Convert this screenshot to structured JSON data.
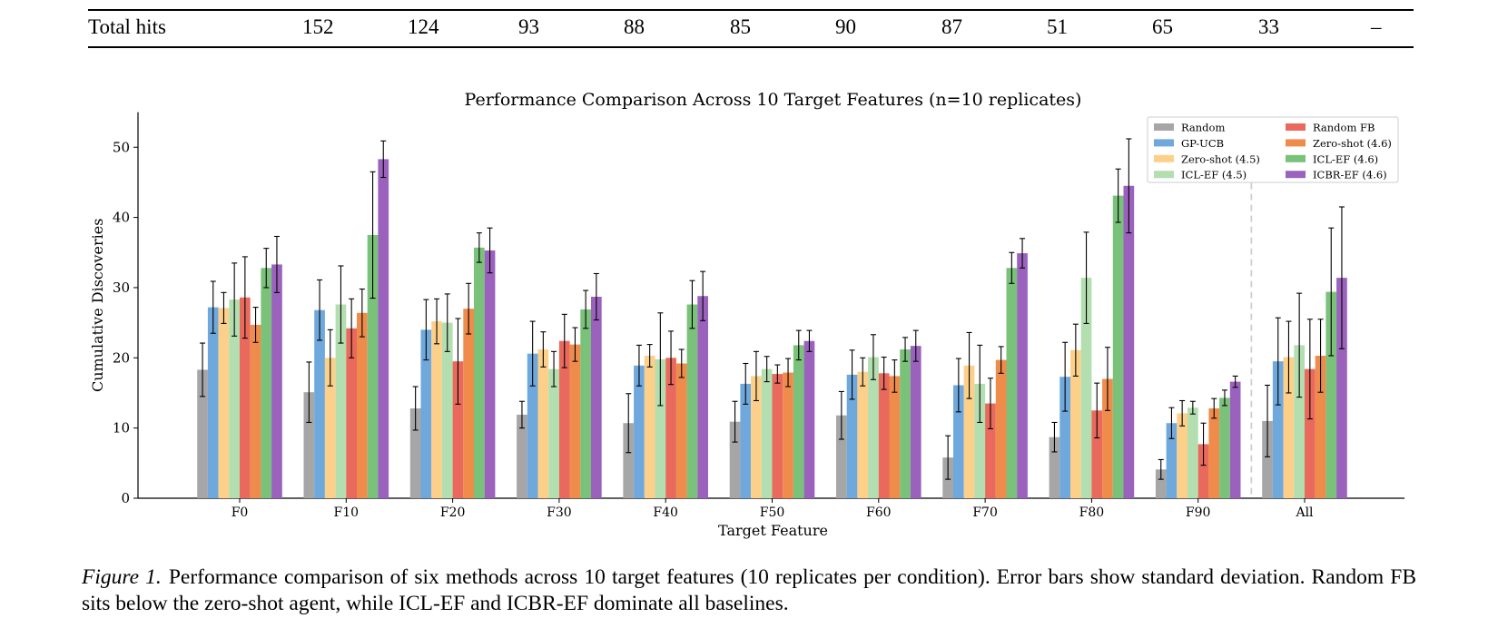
{
  "table": {
    "row_label": "Total hits",
    "values": [
      "152",
      "124",
      "93",
      "88",
      "85",
      "90",
      "87",
      "51",
      "65",
      "33",
      "–"
    ]
  },
  "chart_data": {
    "type": "bar",
    "title": "Performance Comparison Across 10 Target Features (n=10 replicates)",
    "xlabel": "Target Feature",
    "ylabel": "Cumulative Discoveries",
    "ylim": [
      0,
      55
    ],
    "yticks": [
      0,
      10,
      20,
      30,
      40,
      50
    ],
    "grid": false,
    "legend_position": "top-right",
    "categories": [
      "F0",
      "F10",
      "F20",
      "F30",
      "F40",
      "F50",
      "F60",
      "F70",
      "F80",
      "F90",
      "All"
    ],
    "separator_before": "All",
    "series": [
      {
        "name": "Random",
        "color": "#a6a6a6",
        "values": [
          18.3,
          15.1,
          12.8,
          11.9,
          10.7,
          10.9,
          11.8,
          5.8,
          8.7,
          4.1,
          11.0
        ],
        "errors": [
          3.8,
          4.3,
          3.1,
          1.9,
          4.2,
          2.9,
          3.4,
          3.1,
          2.1,
          1.4,
          5.1
        ]
      },
      {
        "name": "GP-UCB",
        "color": "#6fa8dc",
        "values": [
          27.2,
          26.8,
          24.0,
          20.6,
          18.9,
          16.3,
          17.6,
          16.1,
          17.3,
          10.7,
          19.5
        ],
        "errors": [
          3.7,
          4.3,
          4.3,
          4.6,
          2.9,
          2.9,
          3.5,
          3.8,
          4.9,
          2.2,
          6.2
        ]
      },
      {
        "name": "Zero-shot (4.5)",
        "color": "#fdd08a",
        "values": [
          27.1,
          20.0,
          25.2,
          21.2,
          20.3,
          17.4,
          18.0,
          18.9,
          21.1,
          12.1,
          20.1
        ],
        "errors": [
          2.2,
          4.0,
          3.2,
          2.5,
          1.6,
          3.5,
          2.0,
          4.7,
          3.7,
          1.8,
          5.1
        ]
      },
      {
        "name": "ICL-EF (4.5)",
        "color": "#b3deb0",
        "values": [
          28.3,
          27.6,
          25.0,
          18.4,
          19.8,
          18.4,
          20.1,
          16.3,
          31.4,
          12.9,
          21.8
        ],
        "errors": [
          5.2,
          5.5,
          4.1,
          2.5,
          6.6,
          1.8,
          3.2,
          5.5,
          6.5,
          0.9,
          7.4
        ]
      },
      {
        "name": "Random FB",
        "color": "#e9695c",
        "values": [
          28.6,
          24.2,
          19.5,
          22.4,
          20.0,
          17.7,
          17.8,
          13.5,
          12.5,
          7.7,
          18.4
        ],
        "errors": [
          5.8,
          4.2,
          6.1,
          3.8,
          3.8,
          1.3,
          2.3,
          3.6,
          3.9,
          3.0,
          7.1
        ]
      },
      {
        "name": "Zero-shot (4.6)",
        "color": "#ef8c4b",
        "values": [
          24.7,
          26.4,
          27.0,
          21.9,
          19.2,
          17.9,
          17.4,
          19.7,
          17.0,
          12.8,
          20.3
        ],
        "errors": [
          2.5,
          3.4,
          3.6,
          2.4,
          2.0,
          2.0,
          2.3,
          1.9,
          4.5,
          1.4,
          5.2
        ]
      },
      {
        "name": "ICL-EF (4.6)",
        "color": "#7ac17a",
        "values": [
          32.8,
          37.5,
          35.7,
          26.9,
          27.6,
          21.8,
          21.2,
          32.8,
          43.1,
          14.3,
          29.4
        ],
        "errors": [
          2.8,
          9.0,
          2.1,
          2.7,
          3.4,
          2.1,
          1.7,
          2.2,
          3.8,
          1.1,
          9.1
        ]
      },
      {
        "name": "ICBR-EF (4.6)",
        "color": "#9b62bd",
        "values": [
          33.3,
          48.3,
          35.3,
          28.7,
          28.8,
          22.4,
          21.7,
          34.9,
          44.5,
          16.6,
          31.4
        ],
        "errors": [
          4.0,
          2.6,
          3.2,
          3.3,
          3.5,
          1.5,
          2.2,
          2.1,
          6.7,
          0.8,
          10.1
        ]
      }
    ]
  },
  "caption": {
    "label": "Figure 1.",
    "text": "Performance comparison of six methods across 10 target features (10 replicates per condition). Error bars show standard deviation. Random FB sits below the zero-shot agent, while ICL-EF and ICBR-EF dominate all baselines."
  }
}
